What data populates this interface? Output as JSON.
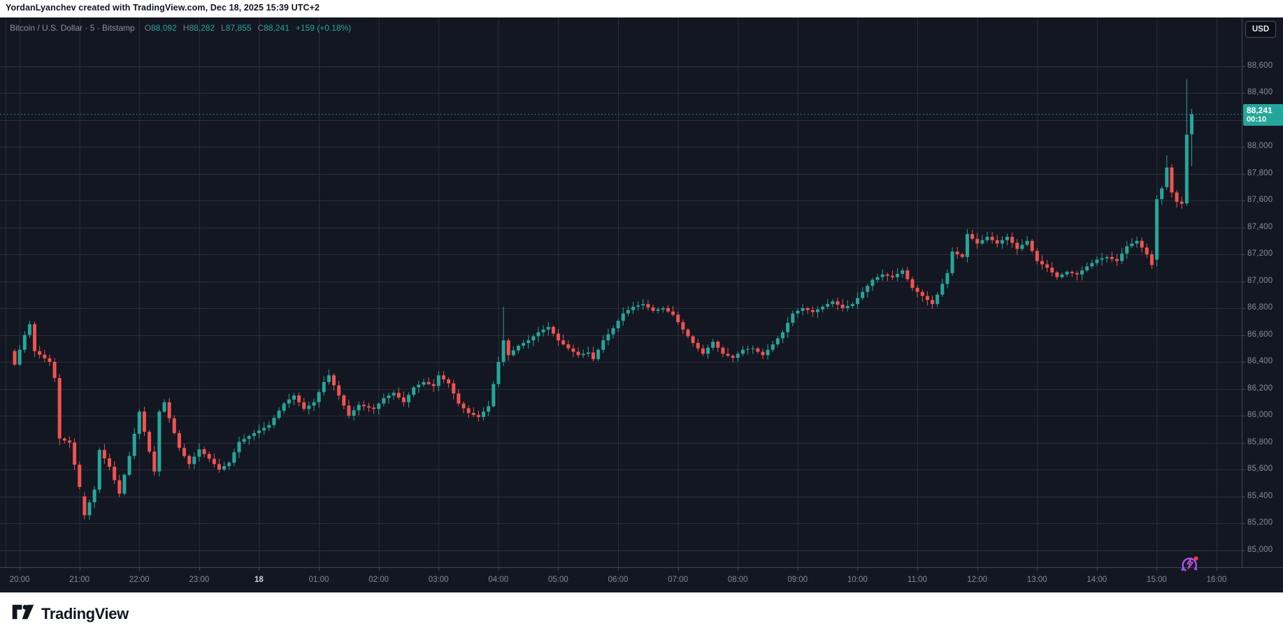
{
  "attribution": {
    "text": "YordanLyanchev created with TradingView.com, Dec 18, 2025 15:39 UTC+2"
  },
  "header": {
    "symbol_summary": "Bitcoin / U.S. Dollar · 5 · Bitstamp",
    "o_label": "O",
    "o_value": "88,092",
    "h_label": "H",
    "h_value": "88,282",
    "l_label": "L",
    "l_value": "87,855",
    "c_label": "C",
    "c_value": "88,241",
    "change": "+159 (+0.18%)"
  },
  "currency_button": {
    "label": "USD"
  },
  "price_axis": {
    "levels": [
      88600,
      88400,
      88200,
      88000,
      87800,
      87600,
      87400,
      87200,
      87000,
      86800,
      86600,
      86400,
      86200,
      86000,
      85800,
      85600,
      85400,
      85200,
      85000
    ],
    "labels": [
      "88,600",
      "88,400",
      "88,200",
      "88,000",
      "87,800",
      "87,600",
      "87,400",
      "87,200",
      "87,000",
      "86,800",
      "86,600",
      "86,400",
      "86,200",
      "86,000",
      "85,800",
      "85,600",
      "85,400",
      "85,200",
      "85,000"
    ],
    "last_price": {
      "value": "88,241",
      "countdown": "00:10"
    }
  },
  "time_axis": {
    "labels": [
      {
        "text": "20:00",
        "em": false
      },
      {
        "text": "21:00",
        "em": false
      },
      {
        "text": "22:00",
        "em": false
      },
      {
        "text": "23:00",
        "em": false
      },
      {
        "text": "18",
        "em": true
      },
      {
        "text": "01:00",
        "em": false
      },
      {
        "text": "02:00",
        "em": false
      },
      {
        "text": "03:00",
        "em": false
      },
      {
        "text": "04:00",
        "em": false
      },
      {
        "text": "05:00",
        "em": false
      },
      {
        "text": "06:00",
        "em": false
      },
      {
        "text": "07:00",
        "em": false
      },
      {
        "text": "08:00",
        "em": false
      },
      {
        "text": "09:00",
        "em": false
      },
      {
        "text": "10:00",
        "em": false
      },
      {
        "text": "11:00",
        "em": false
      },
      {
        "text": "12:00",
        "em": false
      },
      {
        "text": "13:00",
        "em": false
      },
      {
        "text": "14:00",
        "em": false
      },
      {
        "text": "15:00",
        "em": false
      },
      {
        "text": "16:00",
        "em": false
      }
    ]
  },
  "footer": {
    "brand": "TradingView"
  },
  "colors": {
    "background": "#131722",
    "grid": "#2a2e39",
    "axis_border": "#434651",
    "up": "#26a69a",
    "down": "#ef5350",
    "axis_text": "#868b94",
    "last_price_line": "#26a69a",
    "badge": "#26a69a"
  },
  "chart_data": {
    "type": "candlestick",
    "title": "Bitcoin / U.S. Dollar",
    "interval_minutes": 5,
    "exchange": "Bitstamp",
    "start_time": "19:55 Dec 17",
    "end_time": "15:40 Dec 18, 2025",
    "ylim": [
      85000,
      88600
    ],
    "grid_step": 200,
    "candle_count": 237,
    "last_candle": {
      "open": 88092,
      "high": 88282,
      "low": 87855,
      "close": 88241,
      "change": 159,
      "change_pct": 0.18
    },
    "session_low": 85230,
    "session_high": 88500,
    "first_open": 86480,
    "close_waypoints": [
      [
        0,
        86380
      ],
      [
        2,
        86600
      ],
      [
        3,
        86680
      ],
      [
        4,
        86480
      ],
      [
        7,
        86400
      ],
      [
        8,
        86280
      ],
      [
        9,
        85830
      ],
      [
        11,
        85800
      ],
      [
        13,
        85470
      ],
      [
        14,
        85260
      ],
      [
        16,
        85450
      ],
      [
        17,
        85745
      ],
      [
        19,
        85620
      ],
      [
        21,
        85420
      ],
      [
        23,
        85700
      ],
      [
        25,
        86030
      ],
      [
        26,
        85880
      ],
      [
        28,
        85585
      ],
      [
        29,
        86030
      ],
      [
        30,
        86100
      ],
      [
        31,
        85980
      ],
      [
        33,
        85760
      ],
      [
        35,
        85640
      ],
      [
        37,
        85750
      ],
      [
        39,
        85680
      ],
      [
        41,
        85600
      ],
      [
        43,
        85650
      ],
      [
        45,
        85805
      ],
      [
        48,
        85870
      ],
      [
        51,
        85930
      ],
      [
        54,
        86090
      ],
      [
        56,
        86150
      ],
      [
        58,
        86050
      ],
      [
        60,
        86100
      ],
      [
        62,
        86250
      ],
      [
        63,
        86300
      ],
      [
        65,
        86150
      ],
      [
        67,
        86000
      ],
      [
        69,
        86080
      ],
      [
        72,
        86050
      ],
      [
        74,
        86130
      ],
      [
        76,
        86170
      ],
      [
        78,
        86100
      ],
      [
        80,
        86210
      ],
      [
        82,
        86250
      ],
      [
        84,
        86220
      ],
      [
        85,
        86300
      ],
      [
        87,
        86240
      ],
      [
        89,
        86090
      ],
      [
        91,
        86020
      ],
      [
        93,
        85990
      ],
      [
        95,
        86070
      ],
      [
        97,
        86400
      ],
      [
        98,
        86560
      ],
      [
        99,
        86450
      ],
      [
        101,
        86520
      ],
      [
        103,
        86560
      ],
      [
        105,
        86620
      ],
      [
        107,
        86660
      ],
      [
        109,
        86560
      ],
      [
        111,
        86500
      ],
      [
        113,
        86450
      ],
      [
        115,
        86470
      ],
      [
        116,
        86420
      ],
      [
        118,
        86560
      ],
      [
        120,
        86650
      ],
      [
        122,
        86760
      ],
      [
        124,
        86810
      ],
      [
        126,
        86830
      ],
      [
        128,
        86780
      ],
      [
        130,
        86800
      ],
      [
        132,
        86750
      ],
      [
        134,
        86640
      ],
      [
        136,
        86540
      ],
      [
        138,
        86460
      ],
      [
        140,
        86550
      ],
      [
        142,
        86460
      ],
      [
        144,
        86430
      ],
      [
        146,
        86490
      ],
      [
        148,
        86500
      ],
      [
        150,
        86450
      ],
      [
        152,
        86530
      ],
      [
        154,
        86620
      ],
      [
        156,
        86760
      ],
      [
        158,
        86800
      ],
      [
        160,
        86770
      ],
      [
        162,
        86810
      ],
      [
        164,
        86850
      ],
      [
        166,
        86800
      ],
      [
        168,
        86830
      ],
      [
        170,
        86920
      ],
      [
        172,
        87010
      ],
      [
        174,
        87050
      ],
      [
        176,
        87030
      ],
      [
        178,
        87080
      ],
      [
        180,
        86950
      ],
      [
        182,
        86890
      ],
      [
        184,
        86830
      ],
      [
        185,
        86900
      ],
      [
        187,
        87060
      ],
      [
        188,
        87220
      ],
      [
        190,
        87180
      ],
      [
        191,
        87350
      ],
      [
        193,
        87280
      ],
      [
        195,
        87330
      ],
      [
        197,
        87280
      ],
      [
        199,
        87330
      ],
      [
        201,
        87240
      ],
      [
        203,
        87300
      ],
      [
        205,
        87150
      ],
      [
        207,
        87100
      ],
      [
        209,
        87030
      ],
      [
        211,
        87070
      ],
      [
        213,
        87050
      ],
      [
        215,
        87110
      ],
      [
        217,
        87160
      ],
      [
        219,
        87180
      ],
      [
        221,
        87150
      ],
      [
        223,
        87260
      ],
      [
        225,
        87300
      ],
      [
        227,
        87200
      ],
      [
        228,
        87120
      ],
      [
        229,
        87610
      ],
      [
        230,
        87690
      ],
      [
        231,
        87845
      ],
      [
        232,
        87660
      ],
      [
        233,
        87590
      ],
      [
        234,
        87575
      ],
      [
        235,
        88090
      ],
      [
        236,
        88241
      ]
    ],
    "candle_overrides": {
      "9": [
        86280,
        86310,
        85780,
        85830
      ],
      "14": [
        85400,
        85430,
        85230,
        85260
      ],
      "98": [
        86400,
        86810,
        86370,
        86560
      ],
      "229": [
        87160,
        87640,
        87110,
        87610
      ],
      "231": [
        87700,
        87935,
        87680,
        87845
      ],
      "235": [
        87578,
        88500,
        87560,
        88090
      ],
      "236": [
        88092,
        88282,
        87855,
        88241
      ]
    }
  }
}
